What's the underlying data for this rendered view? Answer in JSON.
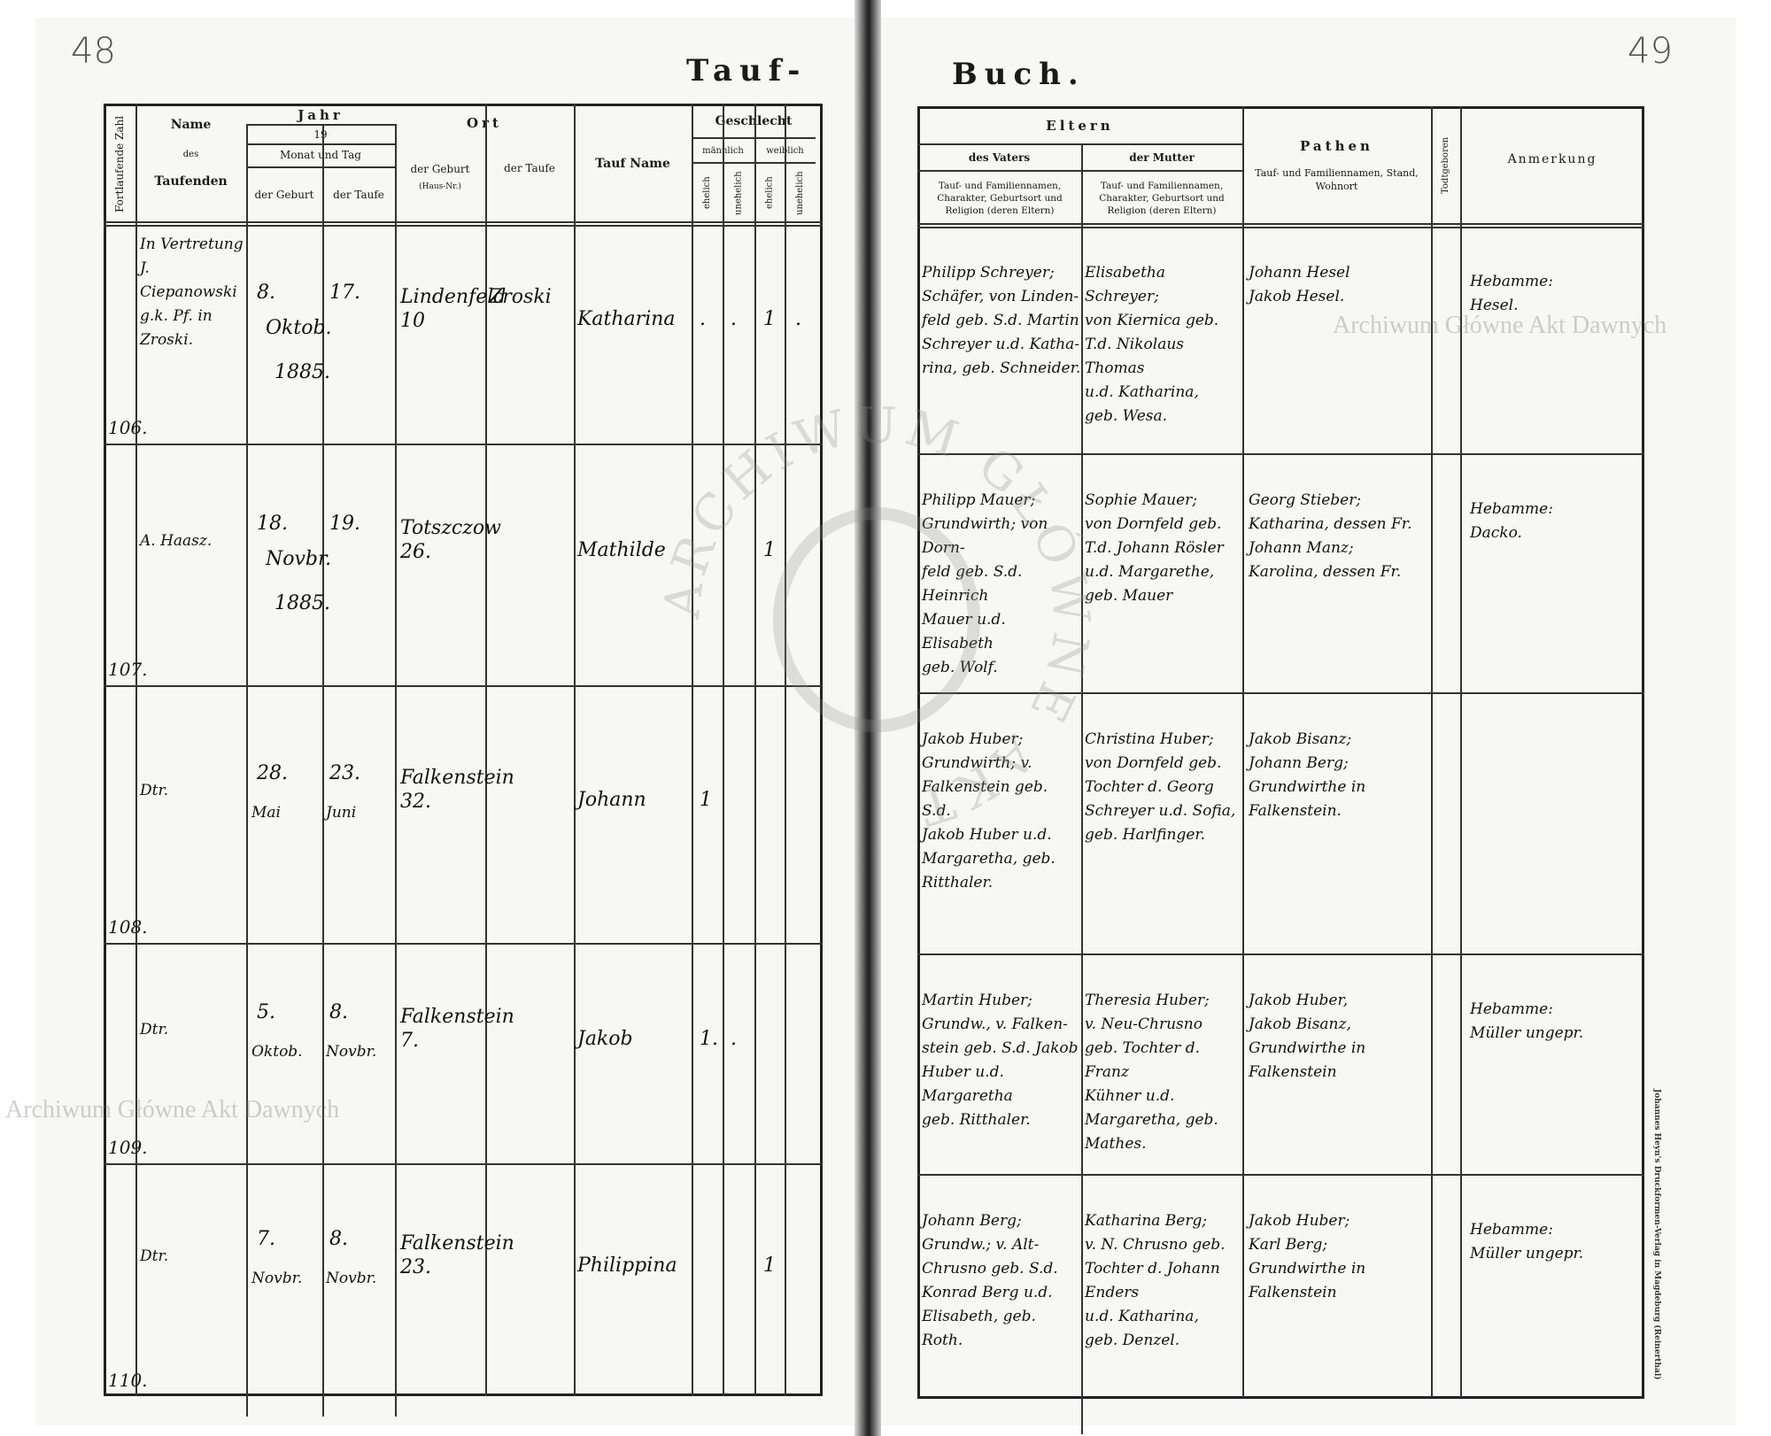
{
  "book": {
    "left_page_number": "48",
    "right_page_number": "49",
    "title_left": "Tauf-",
    "title_right": "Buch.",
    "printer_imprint": "Johannes Heyn's Druckformen-Verlag in Magdeburg (Reinerthal)"
  },
  "watermark": {
    "text": "Archiwum Główne Akt Dawnych",
    "seal_text": "ARCHIWUM GŁÓWNE AKT DAWNYCH"
  },
  "left_headers": {
    "number": "Fortlaufende Zahl",
    "name": "Name",
    "name_des": "des",
    "name_taufenden": "Taufenden",
    "jahr": "Jahr",
    "jahr_19": "19",
    "monat_tag": "Monat und Tag",
    "der_geburt": "der Geburt",
    "der_taufe": "der Taufe",
    "ort": "Ort",
    "ort_geburt": "der Geburt",
    "ort_geburt_sub": "(Haus-Nr.)",
    "ort_taufe": "der Taufe",
    "taufname": "Tauf Name",
    "geschlecht": "Geschlecht",
    "maennlich": "männlich",
    "weiblich": "weiblich",
    "ehelich": "ehelich",
    "unehelich": "unehelich"
  },
  "right_headers": {
    "eltern": "Eltern",
    "vater": "des Vaters",
    "mutter": "der Mutter",
    "eltern_desc": "Tauf- und Familiennamen, Charakter, Geburtsort und Religion (deren Eltern)",
    "pathen": "Pathen",
    "pathen_desc": "Tauf- und Familiennamen, Stand, Wohnort",
    "todtgeboren": "Todtgeboren",
    "anmerkung": "Anmerkung"
  },
  "entries": [
    {
      "number": "106.",
      "name": "In Vertretung\nJ. Ciepanowski\ng.k. Pf. in\nZroski.",
      "birth_day": "8.",
      "baptism_day": "17.",
      "month": "Oktob.",
      "year": "1885.",
      "birth_place": "Lindenfeld\n10",
      "baptism_place": "Zroski",
      "baptism_name": "Katharina",
      "m_ehelich": ".",
      "m_unehelich": ".",
      "w_ehelich": "1",
      "w_unehelich": ".",
      "father": "Philipp Schreyer;\nSchäfer, von Linden-\nfeld geb. S.d. Martin\nSchreyer u.d. Katha-\nrina, geb. Schneider.",
      "mother": "Elisabetha Schreyer;\nvon Kiernica geb.\nT.d. Nikolaus Thomas\nu.d. Katharina,\ngeb. Wesa.",
      "godparents": "Johann Hesel\nJakob Hesel.",
      "stillborn": "",
      "remark": "Hebamme:\nHesel."
    },
    {
      "number": "107.",
      "name": "A. Haasz.",
      "birth_day": "18.",
      "baptism_day": "19.",
      "month": "Novbr.",
      "year": "1885.",
      "birth_place": "Totszczow\n26.",
      "baptism_place": "",
      "baptism_name": "Mathilde",
      "m_ehelich": "",
      "m_unehelich": "",
      "w_ehelich": "1",
      "w_unehelich": "",
      "father": "Philipp Mauer;\nGrundwirth; von Dorn-\nfeld geb. S.d. Heinrich\nMauer u.d. Elisabeth\ngeb. Wolf.",
      "mother": "Sophie Mauer;\nvon Dornfeld geb.\nT.d. Johann Rösler\nu.d. Margarethe,\ngeb. Mauer",
      "godparents": "Georg Stieber;\nKatharina, dessen Fr.\nJohann Manz;\nKarolina, dessen Fr.",
      "stillborn": "",
      "remark": "Hebamme:\nDacko."
    },
    {
      "number": "108.",
      "name": "Dtr.",
      "birth_day": "28.",
      "baptism_day": "23.",
      "birth_month": "Mai",
      "baptism_month": "Juni",
      "month": "",
      "year": "",
      "birth_place": "Falkenstein\n32.",
      "baptism_place": "",
      "baptism_name": "Johann",
      "m_ehelich": "1",
      "m_unehelich": "",
      "w_ehelich": "",
      "w_unehelich": "",
      "father": "Jakob Huber;\nGrundwirth; v.\nFalkenstein geb. S.d.\nJakob Huber u.d.\nMargaretha, geb.\nRitthaler.",
      "mother": "Christina Huber;\nvon Dornfeld geb.\nTochter d. Georg\nSchreyer u.d. Sofia,\ngeb. Harlfinger.",
      "godparents": "Jakob Bisanz;\nJohann Berg;\nGrundwirthe in\nFalkenstein.",
      "stillborn": "",
      "remark": ""
    },
    {
      "number": "109.",
      "name": "Dtr.",
      "birth_day": "5.",
      "baptism_day": "8.",
      "birth_month": "Oktob.",
      "baptism_month": "Novbr.",
      "month": "",
      "year": "",
      "birth_place": "Falkenstein\n7.",
      "baptism_place": "",
      "baptism_name": "Jakob",
      "m_ehelich": "1.",
      "m_unehelich": ".",
      "w_ehelich": "",
      "w_unehelich": "",
      "father": "Martin Huber;\nGrundw., v. Falken-\nstein geb. S.d. Jakob\nHuber u.d. Margaretha\ngeb. Ritthaler.",
      "mother": "Theresia Huber;\nv. Neu-Chrusno\ngeb. Tochter d. Franz\nKühner u.d.\nMargaretha, geb.\nMathes.",
      "godparents": "Jakob Huber,\nJakob Bisanz,\nGrundwirthe in\nFalkenstein",
      "stillborn": "",
      "remark": "Hebamme:\nMüller ungepr."
    },
    {
      "number": "110.",
      "name": "Dtr.",
      "birth_day": "7.",
      "baptism_day": "8.",
      "birth_month": "Novbr.",
      "baptism_month": "Novbr.",
      "month": "",
      "year": "",
      "birth_place": "Falkenstein\n23.",
      "baptism_place": "",
      "baptism_name": "Philippina",
      "m_ehelich": "",
      "m_unehelich": "",
      "w_ehelich": "1",
      "w_unehelich": "",
      "father": "Johann Berg;\nGrundw.; v. Alt-\nChrusno geb. S.d.\nKonrad Berg u.d.\nElisabeth, geb. Roth.",
      "mother": "Katharina Berg;\nv. N. Chrusno geb.\nTochter d. Johann Enders\nu.d. Katharina,\ngeb. Denzel.",
      "godparents": "Jakob Huber;\nKarl Berg;\nGrundwirthe in\nFalkenstein",
      "stillborn": "",
      "remark": "Hebamme:\nMüller ungepr."
    }
  ]
}
